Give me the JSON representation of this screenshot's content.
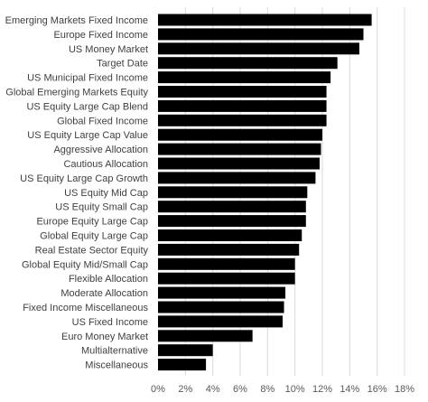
{
  "chart_data": {
    "type": "bar",
    "orientation": "horizontal",
    "title": "",
    "xlabel": "",
    "ylabel": "",
    "categories": [
      "Emerging Markets Fixed Income",
      "Europe Fixed Income",
      "US Money Market",
      "Target Date",
      "US Municipal Fixed Income",
      "Global Emerging Markets Equity",
      "US Equity Large Cap Blend",
      "Global Fixed Income",
      "US Equity Large Cap Value",
      "Aggressive Allocation",
      "Cautious Allocation",
      "US Equity Large Cap Growth",
      "US Equity Mid Cap",
      "US Equity Small Cap",
      "Europe Equity Large Cap",
      "Global Equity Large Cap",
      "Real Estate Sector Equity",
      "Global Equity Mid/Small Cap",
      "Flexible Allocation",
      "Moderate Allocation",
      "Fixed Income Miscellaneous",
      "US Fixed Income",
      "Euro Money Market",
      "Multialternative",
      "Miscellaneous"
    ],
    "values": [
      15.6,
      15.0,
      14.7,
      13.1,
      12.6,
      12.3,
      12.3,
      12.3,
      12.0,
      11.9,
      11.8,
      11.5,
      10.9,
      10.8,
      10.8,
      10.5,
      10.3,
      10.0,
      10.0,
      9.3,
      9.2,
      9.1,
      6.9,
      4.0,
      3.5
    ],
    "xlim": [
      0,
      18
    ],
    "x_ticks": [
      0,
      2,
      4,
      6,
      8,
      10,
      12,
      14,
      16,
      18
    ],
    "x_tick_labels": [
      "0%",
      "2%",
      "4%",
      "6%",
      "8%",
      "10%",
      "12%",
      "14%",
      "16%",
      "18%"
    ],
    "grid": "vertical",
    "legend": "none",
    "bar_color": "#000000",
    "grid_color": "#d9d9d9"
  }
}
